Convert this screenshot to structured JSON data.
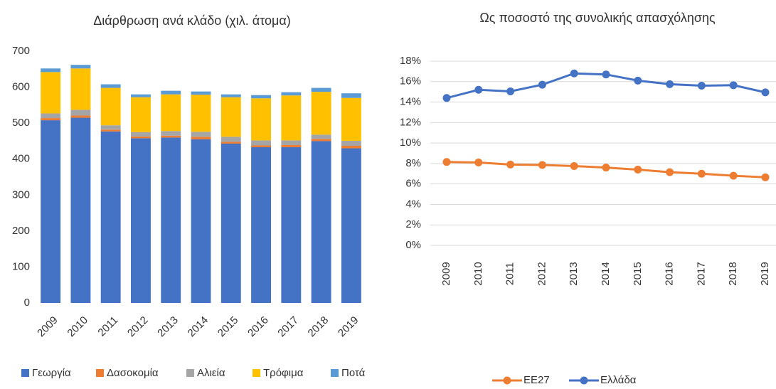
{
  "chart_data": [
    {
      "type": "stacked_bar",
      "title": "Διάρθρωση ανά κλάδο (χιλ. άτομα)",
      "categories": [
        "2009",
        "2010",
        "2011",
        "2012",
        "2013",
        "2014",
        "2015",
        "2016",
        "2017",
        "2018",
        "2019"
      ],
      "series": [
        {
          "name": "Γεωργία",
          "color": "#4472c4",
          "values": [
            508,
            515,
            477,
            458,
            460,
            455,
            443,
            433,
            433,
            450,
            430
          ]
        },
        {
          "name": "Δασοκομία",
          "color": "#ed7d31",
          "values": [
            6,
            6,
            5,
            5,
            5,
            7,
            5,
            5,
            6,
            6,
            7
          ]
        },
        {
          "name": "Αλιεία",
          "color": "#a5a5a5",
          "values": [
            13,
            16,
            12,
            12,
            13,
            14,
            14,
            14,
            13,
            12,
            14
          ]
        },
        {
          "name": "Τρόφιμα",
          "color": "#ffc000",
          "values": [
            115,
            115,
            104,
            97,
            102,
            103,
            110,
            117,
            125,
            119,
            119
          ]
        },
        {
          "name": "Ποτά",
          "color": "#5b9bd5",
          "values": [
            10,
            10,
            10,
            8,
            10,
            9,
            8,
            9,
            9,
            11,
            13
          ]
        }
      ],
      "ylim": [
        0,
        700
      ],
      "yticks": [
        0,
        100,
        200,
        300,
        400,
        500,
        600,
        700
      ],
      "legend": "bottom"
    },
    {
      "type": "line",
      "title": "Ως ποσοστό της συνολικής απασχόλησης",
      "categories": [
        "2009",
        "2010",
        "2011",
        "2012",
        "2013",
        "2014",
        "2015",
        "2016",
        "2017",
        "2018",
        "2019"
      ],
      "series": [
        {
          "name": "ΕΕ27",
          "color": "#ed7d31",
          "values": [
            8.15,
            8.1,
            7.9,
            7.85,
            7.75,
            7.6,
            7.4,
            7.15,
            7.0,
            6.8,
            6.65
          ]
        },
        {
          "name": "Ελλάδα",
          "color": "#4472c4",
          "values": [
            14.4,
            15.2,
            15.05,
            15.7,
            16.8,
            16.7,
            16.1,
            15.75,
            15.6,
            15.65,
            14.95
          ]
        }
      ],
      "ylim": [
        0,
        18
      ],
      "yticks": [
        {
          "value": 0,
          "label": "0%"
        },
        {
          "value": 2,
          "label": "2%"
        },
        {
          "value": 4,
          "label": "4%"
        },
        {
          "value": 6,
          "label": "6%"
        },
        {
          "value": 8,
          "label": "8%"
        },
        {
          "value": 10,
          "label": "10%"
        },
        {
          "value": 12,
          "label": "12%"
        },
        {
          "value": 14,
          "label": "14%"
        },
        {
          "value": 16,
          "label": "16%"
        },
        {
          "value": 18,
          "label": "18%"
        }
      ],
      "grid": true,
      "legend": "bottom"
    }
  ]
}
